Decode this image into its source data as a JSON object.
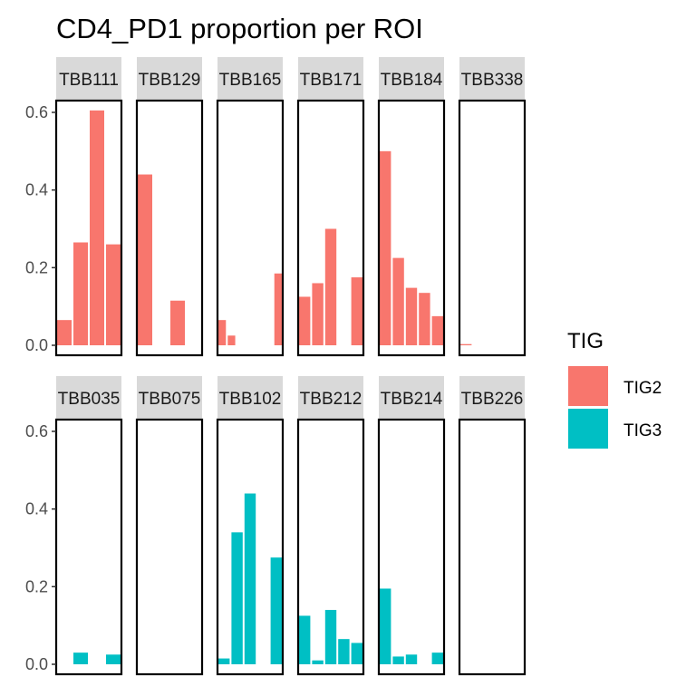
{
  "chart_data": {
    "type": "bar",
    "title": "CD4_PD1 proportion per ROI",
    "xlabel": "",
    "ylabel": "",
    "ylim": [
      0,
      0.63
    ],
    "yticks": [
      0.0,
      0.2,
      0.4,
      0.6
    ],
    "ytick_labels": [
      "0.0",
      "0.2",
      "0.4",
      "0.6"
    ],
    "grid": false,
    "legend": {
      "title": "TIG",
      "position": "right",
      "entries": [
        {
          "label": "TIG2",
          "color": "#F8766D"
        },
        {
          "label": "TIG3",
          "color": "#00BFC4"
        }
      ]
    },
    "strip_color": "#d9d9d9",
    "panels": [
      {
        "label": "TBB111",
        "group": "TIG2",
        "values": [
          0.065,
          0.265,
          0.605,
          0.26
        ]
      },
      {
        "label": "TBB129",
        "group": "TIG2",
        "values": [
          0.44,
          0,
          0.115,
          0
        ]
      },
      {
        "label": "TBB165",
        "group": "TIG2",
        "values": [
          0.065,
          0.025,
          0,
          0,
          0,
          0,
          0.185
        ]
      },
      {
        "label": "TBB171",
        "group": "TIG2",
        "values": [
          0.125,
          0.16,
          0.3,
          0,
          0.175
        ]
      },
      {
        "label": "TBB184",
        "group": "TIG2",
        "values": [
          0.5,
          0.225,
          0.148,
          0.135,
          0.075
        ]
      },
      {
        "label": "TBB338",
        "group": "TIG2",
        "values": [
          0.003,
          0,
          0,
          0,
          0
        ]
      },
      {
        "label": "TBB035",
        "group": "TIG3",
        "values": [
          0,
          0.03,
          0,
          0.025
        ]
      },
      {
        "label": "TBB075",
        "group": "TIG3",
        "values": [
          0,
          0,
          0,
          0
        ]
      },
      {
        "label": "TBB102",
        "group": "TIG3",
        "values": [
          0.015,
          0.34,
          0.44,
          0,
          0.275
        ]
      },
      {
        "label": "TBB212",
        "group": "TIG3",
        "values": [
          0.125,
          0.01,
          0.14,
          0.065,
          0.055
        ]
      },
      {
        "label": "TBB214",
        "group": "TIG3",
        "values": [
          0.195,
          0.02,
          0.025,
          0,
          0.03
        ]
      },
      {
        "label": "TBB226",
        "group": "TIG3",
        "values": [
          0,
          0,
          0,
          0,
          0
        ]
      }
    ]
  }
}
